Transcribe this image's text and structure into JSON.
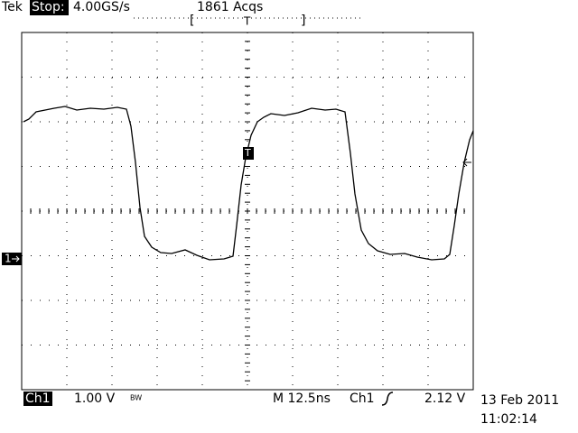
{
  "header": {
    "brand": "Tek",
    "status": "Stop:",
    "sample_rate": "4.00GS/s",
    "acquisitions": "1861 Acqs"
  },
  "markers": {
    "trigger_position": "T",
    "trigger_level": "T",
    "channel_ground": "1"
  },
  "footer": {
    "channel": "Ch1",
    "scale": "1.00 V",
    "bandwidth": "BW",
    "timebase": "M 12.5ns",
    "trigger_source": "Ch1",
    "trigger_level": "2.12 V",
    "date": "13 Feb 2011",
    "time": "11:02:14"
  }
}
